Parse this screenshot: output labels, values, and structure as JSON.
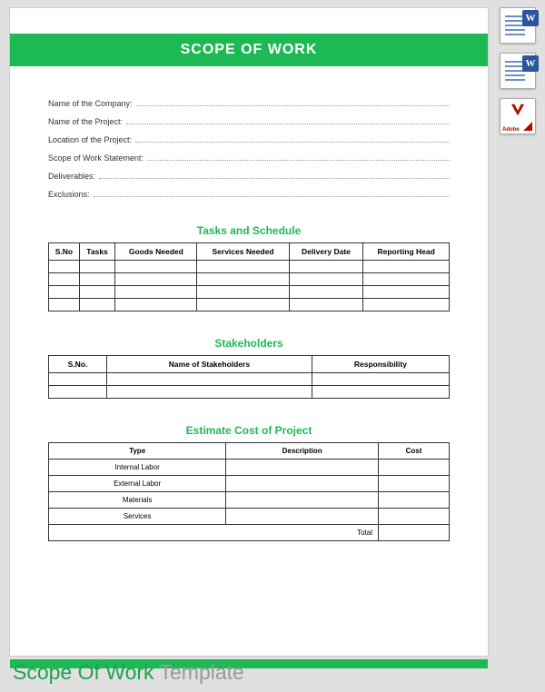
{
  "header": {
    "title": "SCOPE OF WORK"
  },
  "fields": [
    {
      "label": "Name of the Company:"
    },
    {
      "label": "Name of the Project:"
    },
    {
      "label": "Location of the Project:"
    },
    {
      "label": "Scope of Work Statement:"
    },
    {
      "label": "Deliverables:"
    },
    {
      "label": "Exclusions:"
    }
  ],
  "tasks": {
    "title": "Tasks and Schedule",
    "columns": [
      "S.No",
      "Tasks",
      "Goods Needed",
      "Services Needed",
      "Delivery Date",
      "Reporting Head"
    ],
    "rows": 4
  },
  "stakeholders": {
    "title": "Stakeholders",
    "columns": [
      "S.No.",
      "Name of Stakeholders",
      "Responsibility"
    ],
    "rows": 2
  },
  "cost": {
    "title": "Estimate Cost of Project",
    "columns": [
      "Type",
      "Description",
      "Cost"
    ],
    "types": [
      "Internal Labor",
      "External Labor",
      "Materials",
      "Services"
    ],
    "total_label": "Total"
  },
  "caption": {
    "main": "Scope Of Work ",
    "sub": "Template"
  },
  "icons": {
    "word_badge": "W",
    "pdf_label": "Adobe"
  },
  "colors": {
    "accent": "#1db954",
    "caption": "#20a050",
    "word": "#2b579a",
    "pdf": "#b30b00",
    "bg": "#e0e0e0"
  }
}
